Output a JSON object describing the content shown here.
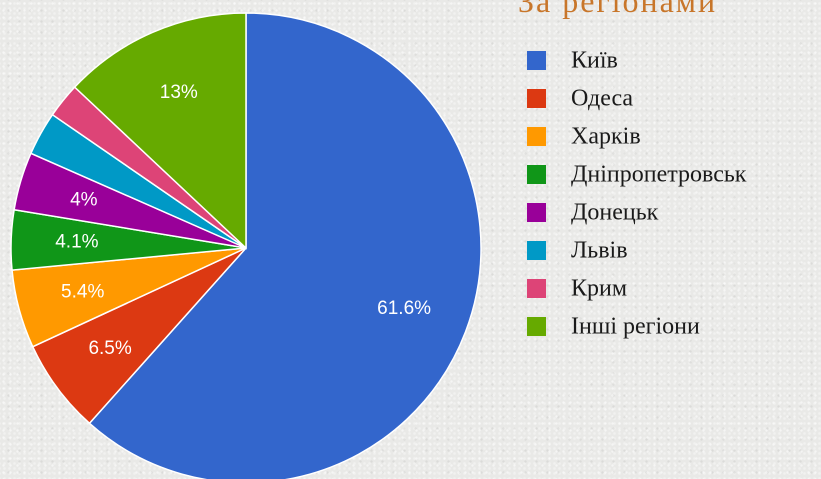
{
  "chart_data": {
    "type": "pie",
    "title": "За регіонами",
    "legend_position": "right",
    "slices": [
      {
        "name": "Київ",
        "value": 61.6,
        "label": "61.6%",
        "color": "#3366cc"
      },
      {
        "name": "Одеса",
        "value": 6.5,
        "label": "6.5%",
        "color": "#dc3912"
      },
      {
        "name": "Харків",
        "value": 5.4,
        "label": "5.4%",
        "color": "#ff9900"
      },
      {
        "name": "Дніпропетровськ",
        "value": 4.1,
        "label": "4.1%",
        "color": "#109618"
      },
      {
        "name": "Донецьк",
        "value": 4.0,
        "label": "4%",
        "color": "#990099"
      },
      {
        "name": "Львів",
        "value": 3.0,
        "label": "",
        "color": "#0099c6"
      },
      {
        "name": "Крим",
        "value": 2.4,
        "label": "",
        "color": "#dd4477"
      },
      {
        "name": "Інші регіони",
        "value": 13.0,
        "label": "13%",
        "color": "#66aa00"
      }
    ]
  }
}
